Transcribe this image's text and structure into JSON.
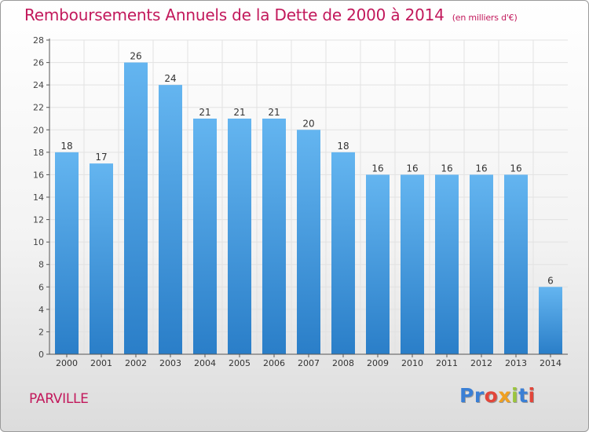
{
  "title": "Remboursements Annuels de la Dette de 2000 à 2014",
  "unit": "(en milliers d'€)",
  "commune": "PARVILLE",
  "logo": {
    "text": "Proxiti",
    "colors": [
      "#3a7fd5",
      "#3a7fd5",
      "#e2463a",
      "#f0a020",
      "#9bc53d",
      "#3a7fd5",
      "#e2463a"
    ]
  },
  "colors": {
    "title": "#c2185b",
    "bar_top": "#64b5f0",
    "bar_bottom": "#2a7ec8",
    "grid": "#e2e2e2"
  },
  "chart_data": {
    "type": "bar",
    "categories": [
      "2000",
      "2001",
      "2002",
      "2003",
      "2004",
      "2005",
      "2006",
      "2007",
      "2008",
      "2009",
      "2010",
      "2011",
      "2012",
      "2013",
      "2014"
    ],
    "values": [
      18,
      17,
      26,
      24,
      21,
      21,
      21,
      20,
      18,
      16,
      16,
      16,
      16,
      16,
      6
    ],
    "ylim": [
      0,
      28
    ],
    "yticks": [
      0,
      2,
      4,
      6,
      8,
      10,
      12,
      14,
      16,
      18,
      20,
      22,
      24,
      26,
      28
    ],
    "grid": true,
    "data_labels": true
  }
}
